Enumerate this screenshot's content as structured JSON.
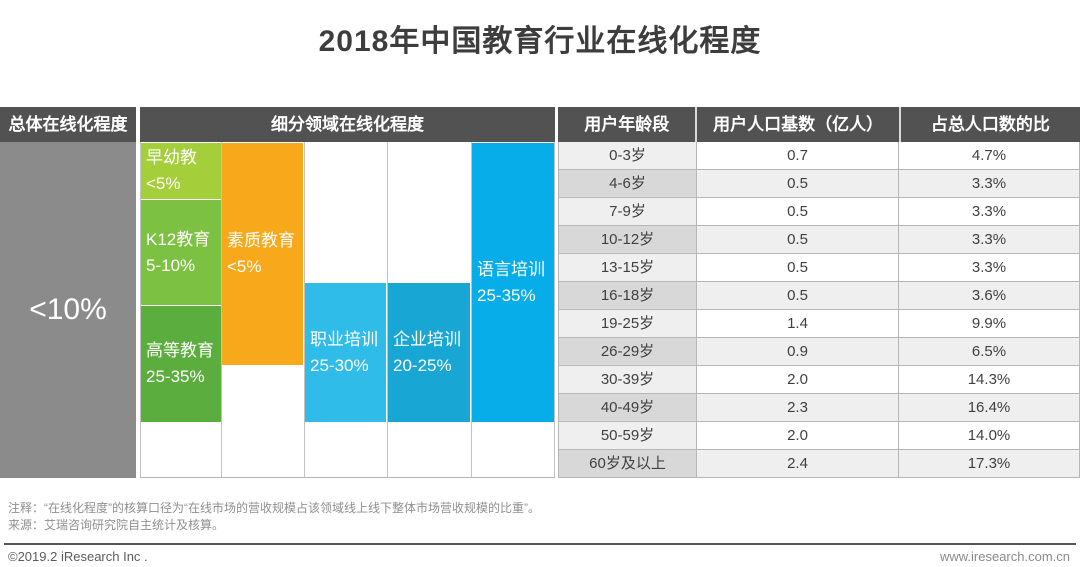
{
  "title": "2018年中国教育行业在线化程度",
  "overall": {
    "header": "总体在线化程度",
    "value": "<10%"
  },
  "segments": {
    "header": "细分领域在线化程度",
    "blocks": [
      {
        "name": "早幼教",
        "range": "<5%",
        "color": "#a5ce3b"
      },
      {
        "name": "K12教育",
        "range": "5-10%",
        "color": "#7dc142"
      },
      {
        "name": "高等教育",
        "range": "25-35%",
        "color": "#5bad3e"
      },
      {
        "name": "素质教育",
        "range": "<5%",
        "color": "#f7a81b"
      },
      {
        "name": "职业培训",
        "range": "25-30%",
        "color": "#30bce9"
      },
      {
        "name": "企业培训",
        "range": "20-25%",
        "color": "#18a7d5"
      },
      {
        "name": "语言培训",
        "range": "25-35%",
        "color": "#06ade9"
      }
    ]
  },
  "table": {
    "headers": [
      "用户年龄段",
      "用户人口基数（亿人）",
      "占总人口数的比"
    ],
    "rows": [
      [
        "0-3岁",
        "0.7",
        "4.7%"
      ],
      [
        "4-6岁",
        "0.5",
        "3.3%"
      ],
      [
        "7-9岁",
        "0.5",
        "3.3%"
      ],
      [
        "10-12岁",
        "0.5",
        "3.3%"
      ],
      [
        "13-15岁",
        "0.5",
        "3.3%"
      ],
      [
        "16-18岁",
        "0.5",
        "3.6%"
      ],
      [
        "19-25岁",
        "1.4",
        "9.9%"
      ],
      [
        "26-29岁",
        "0.9",
        "6.5%"
      ],
      [
        "30-39岁",
        "2.0",
        "14.3%"
      ],
      [
        "40-49岁",
        "2.3",
        "16.4%"
      ],
      [
        "50-59岁",
        "2.0",
        "14.0%"
      ],
      [
        "60岁及以上",
        "2.4",
        "17.3%"
      ]
    ]
  },
  "notes": {
    "line1": "注释：“在线化程度”的核算口径为“在线市场的营收规模占该领域线上线下整体市场营收规模的比重”。",
    "line2": "来源：艾瑞咨询研究院自主统计及核算。"
  },
  "footer": {
    "left": "©2019.2 iResearch Inc .",
    "right": "www.iresearch.com.cn"
  },
  "colors": {
    "header_bg": "#525252",
    "overall_panel_bg": "#8b8b8b",
    "row_stripe_light": "#efefef",
    "row_stripe_dark": "#d8d8d8",
    "text_dark": "#3d3d3d"
  },
  "chart_data": [
    {
      "type": "bar",
      "title": "2018年中国教育行业在线化程度",
      "categories": [
        "总体在线化程度",
        "早幼教",
        "K12教育",
        "高等教育",
        "素质教育",
        "职业培训",
        "企业培训",
        "语言培训"
      ],
      "values_text": [
        "<10%",
        "<5%",
        "5-10%",
        "25-35%",
        "<5%",
        "25-30%",
        "20-25%",
        "25-35%"
      ],
      "values_estimate_pct": [
        10,
        5,
        7.5,
        30,
        5,
        27.5,
        22.5,
        30
      ],
      "xlabel": "",
      "ylabel": "在线化程度",
      "legend_position": "none",
      "grid": false
    },
    {
      "type": "table",
      "title": "用户年龄段 / 用户人口基数（亿人）/ 占总人口数的比",
      "columns": [
        "用户年龄段",
        "用户人口基数（亿人）",
        "占总人口数的比"
      ],
      "rows": [
        [
          "0-3岁",
          0.7,
          "4.7%"
        ],
        [
          "4-6岁",
          0.5,
          "3.3%"
        ],
        [
          "7-9岁",
          0.5,
          "3.3%"
        ],
        [
          "10-12岁",
          0.5,
          "3.3%"
        ],
        [
          "13-15岁",
          0.5,
          "3.3%"
        ],
        [
          "16-18岁",
          0.5,
          "3.6%"
        ],
        [
          "19-25岁",
          1.4,
          "9.9%"
        ],
        [
          "26-29岁",
          0.9,
          "6.5%"
        ],
        [
          "30-39岁",
          2.0,
          "14.3%"
        ],
        [
          "40-49岁",
          2.3,
          "16.4%"
        ],
        [
          "50-59岁",
          2.0,
          "14.0%"
        ],
        [
          "60岁及以上",
          2.4,
          "17.3%"
        ]
      ]
    }
  ]
}
